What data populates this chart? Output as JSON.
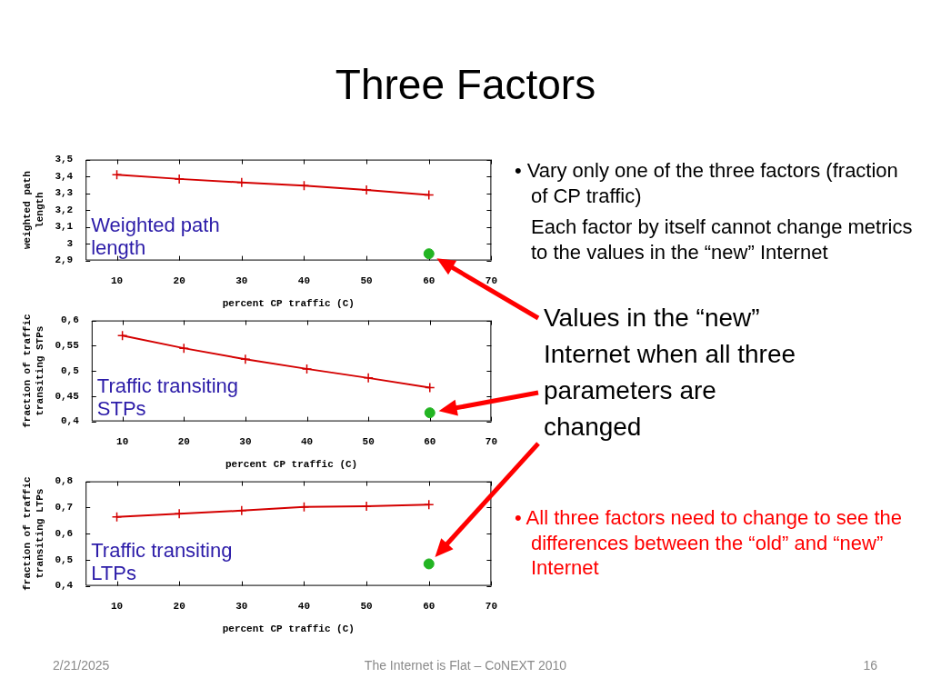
{
  "chart_data": [
    {
      "type": "line",
      "x": [
        10,
        20,
        30,
        40,
        50,
        60
      ],
      "xlim": [
        5,
        70
      ],
      "xticks": [
        10,
        20,
        30,
        40,
        50,
        60,
        70
      ],
      "ylim": [
        2.9,
        3.5
      ],
      "yticks": [
        {
          "value": 2.9,
          "label": "2,9"
        },
        3,
        {
          "value": 3.1,
          "label": "3,1"
        },
        {
          "value": 3.2,
          "label": "3,2"
        },
        {
          "value": 3.3,
          "label": "3,3"
        },
        {
          "value": 3.4,
          "label": "3,4"
        },
        {
          "value": 3.5,
          "label": "3,5"
        }
      ],
      "xlabel": "percent CP traffic (C)",
      "ylabel": "weighted path length",
      "annotations": [
        "Weighted path length"
      ],
      "series": [
        {
          "color": "#d40000",
          "marker": "cross",
          "values": [
            3.41,
            3.385,
            3.364,
            3.345,
            3.319,
            3.29
          ]
        },
        {
          "type": "scatter",
          "color": "#22b422",
          "marker": "circle",
          "values": [
            null,
            null,
            null,
            null,
            null,
            2.94
          ]
        }
      ]
    },
    {
      "type": "line",
      "x": [
        10,
        20,
        30,
        40,
        50,
        60
      ],
      "xlim": [
        5,
        70
      ],
      "xticks": [
        10,
        20,
        30,
        40,
        50,
        60,
        70
      ],
      "ylim": [
        0.4,
        0.6
      ],
      "yticks": [
        {
          "value": 0.4,
          "label": "0,4"
        },
        {
          "value": 0.45,
          "label": "0,45"
        },
        {
          "value": 0.5,
          "label": "0,5"
        },
        {
          "value": 0.55,
          "label": "0,55"
        },
        {
          "value": 0.6,
          "label": "0,6"
        }
      ],
      "xlabel": "percent CP traffic (C)",
      "ylabel": "fraction of traffic transiting STPs",
      "annotations": [
        "Traffic transiting STPs"
      ],
      "series": [
        {
          "color": "#d40000",
          "marker": "cross",
          "values": [
            0.57,
            0.545,
            0.523,
            0.504,
            0.486,
            0.467
          ]
        },
        {
          "type": "scatter",
          "color": "#22b422",
          "marker": "circle",
          "values": [
            null,
            null,
            null,
            null,
            null,
            0.417
          ]
        }
      ]
    },
    {
      "type": "line",
      "x": [
        10,
        20,
        30,
        40,
        50,
        60
      ],
      "xlim": [
        5,
        70
      ],
      "xticks": [
        10,
        20,
        30,
        40,
        50,
        60,
        70
      ],
      "ylim": [
        0.4,
        0.8
      ],
      "yticks": [
        {
          "value": 0.4,
          "label": "0,4"
        },
        {
          "value": 0.5,
          "label": "0,5"
        },
        {
          "value": 0.6,
          "label": "0,6"
        },
        {
          "value": 0.7,
          "label": "0,7"
        },
        {
          "value": 0.8,
          "label": "0,8"
        }
      ],
      "xlabel": "percent CP traffic (C)",
      "ylabel": "fraction of traffic transiting LTPs",
      "annotations": [
        "Traffic transiting LTPs"
      ],
      "series": [
        {
          "color": "#d40000",
          "marker": "cross",
          "values": [
            0.664,
            0.676,
            0.688,
            0.702,
            0.705,
            0.711
          ]
        },
        {
          "type": "scatter",
          "color": "#22b422",
          "marker": "circle",
          "values": [
            null,
            null,
            null,
            null,
            null,
            0.484
          ]
        }
      ]
    },
    {
      "type": "other",
      "title": "Three Factors",
      "annotations": [
        "• Vary only one of the three factors (fraction of CP traffic)",
        "Each factor by itself cannot change metrics to the values in the “new” Internet",
        "Values in the “new” Internet when all three parameters are changed",
        "• All three factors need to change to see the differences between the “old” and “new” Internet",
        "2/21/2025",
        "The Internet is Flat – CoNEXT 2010",
        "16"
      ]
    }
  ]
}
